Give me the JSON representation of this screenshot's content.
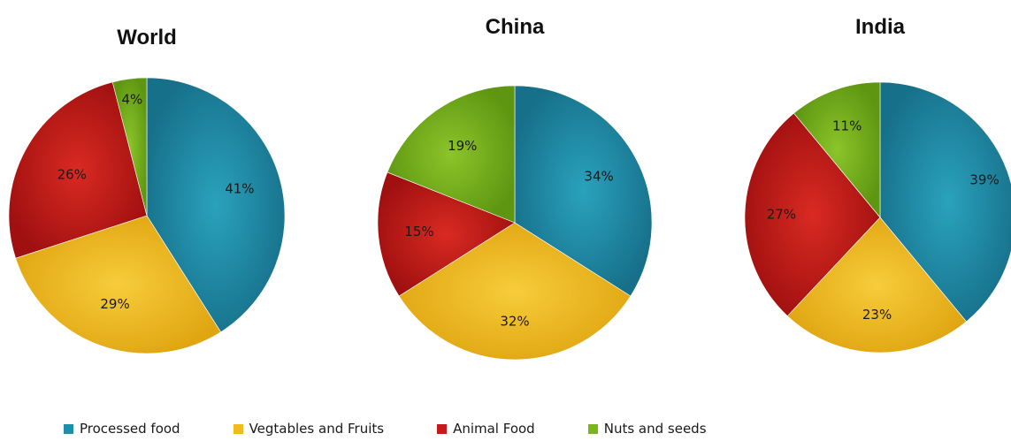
{
  "chart_data": [
    {
      "type": "pie",
      "title": "World",
      "categories": [
        "Processed food",
        "Vegtables and Fruits",
        "Animal Food",
        "Nuts and seeds"
      ],
      "values": [
        41,
        29,
        26,
        4
      ],
      "labels": [
        "41%",
        "29%",
        "26%",
        "4%"
      ]
    },
    {
      "type": "pie",
      "title": "China",
      "categories": [
        "Processed food",
        "Vegtables and Fruits",
        "Animal Food",
        "Nuts and seeds"
      ],
      "values": [
        34,
        32,
        15,
        19
      ],
      "labels": [
        "34%",
        "32%",
        "15%",
        "19%"
      ]
    },
    {
      "type": "pie",
      "title": "India",
      "categories": [
        "Processed food",
        "Vegtables and Fruits",
        "Animal Food",
        "Nuts and seeds"
      ],
      "values": [
        39,
        23,
        27,
        11
      ],
      "labels": [
        "39%",
        "23%",
        "27%",
        "11%"
      ]
    }
  ],
  "legend": [
    {
      "label": "Processed food",
      "color": "#1e8fa8"
    },
    {
      "label": "Vegtables and Fruits",
      "color": "#f2bb1d"
    },
    {
      "label": "Animal Food",
      "color": "#c41a1a"
    },
    {
      "label": "Nuts and seeds",
      "color": "#7ab51d"
    }
  ]
}
